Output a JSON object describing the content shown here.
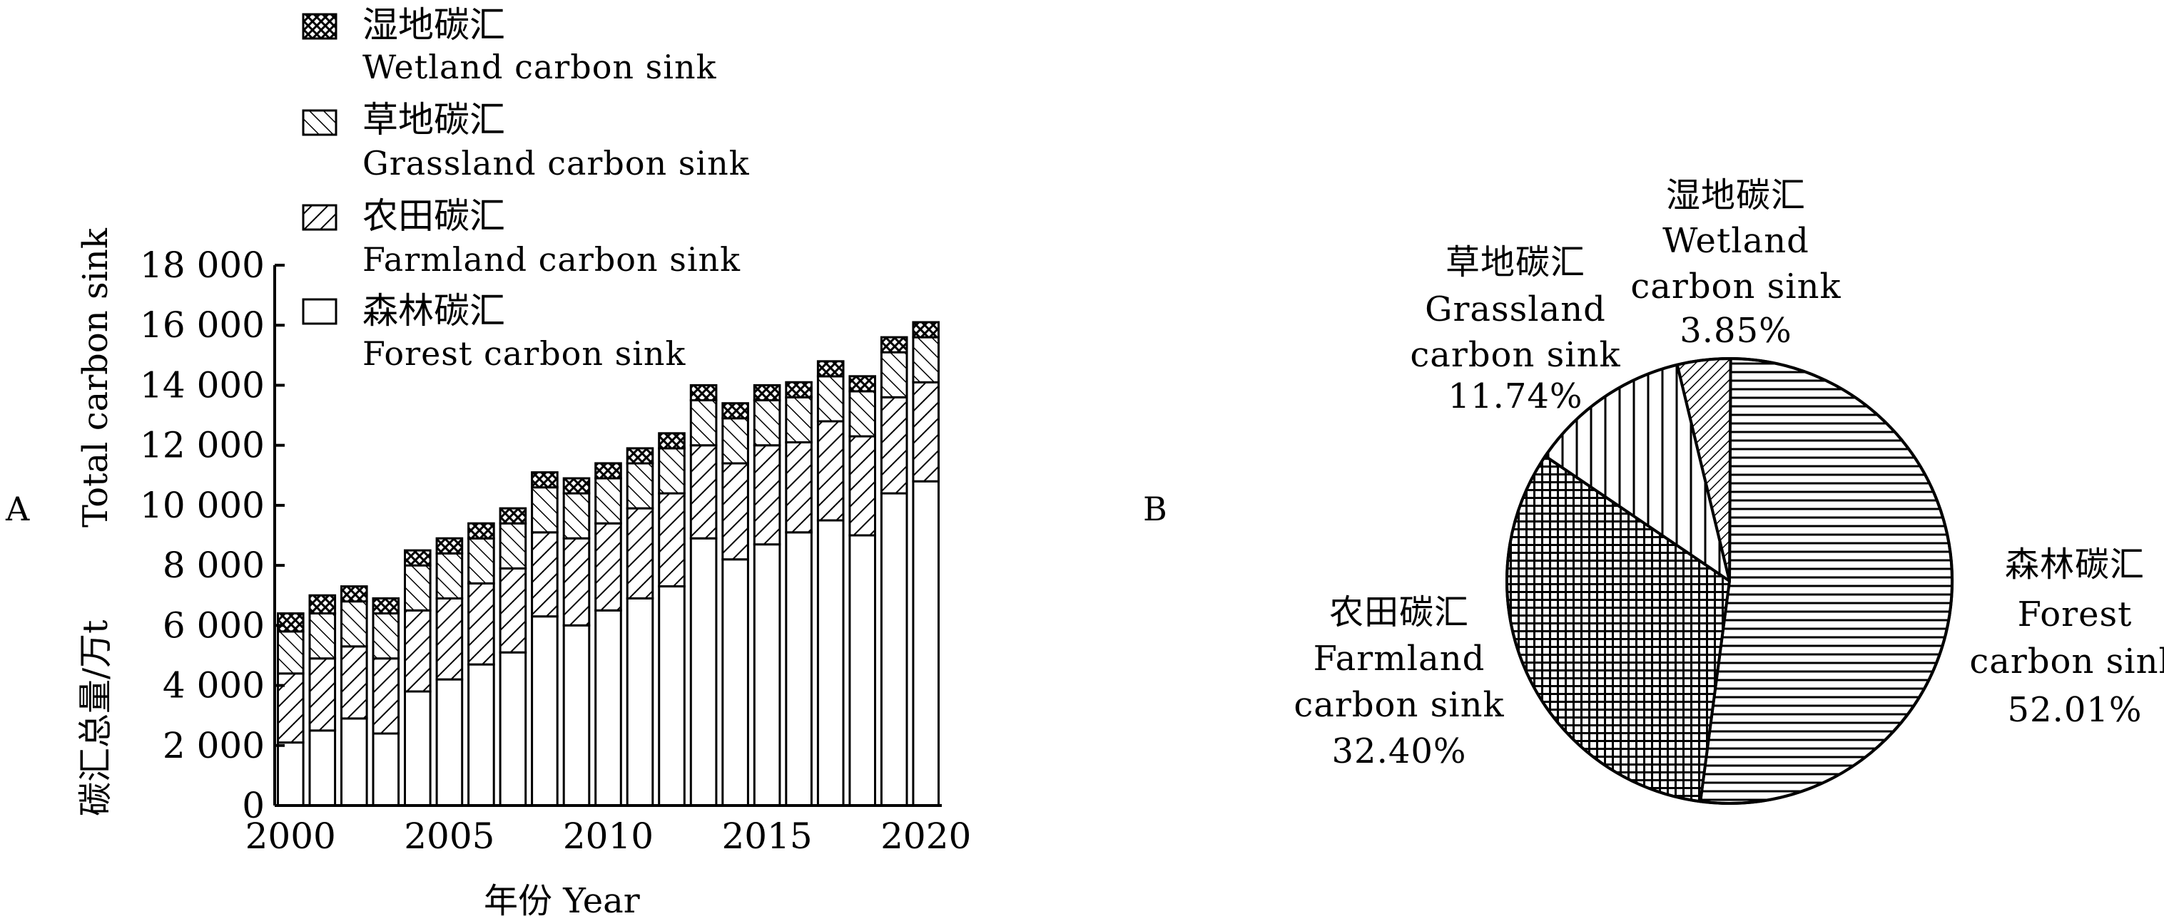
{
  "panel_a": {
    "label": "A",
    "ylabel_cn": "碳汇总量/万t",
    "ylabel_en": "Total carbon sink",
    "xlabel": "年份 Year",
    "legend": [
      {
        "cn": "湿地碳汇",
        "en": "Wetland carbon sink",
        "pattern": "wetland"
      },
      {
        "cn": "草地碳汇",
        "en": "Grassland carbon sink",
        "pattern": "grassland"
      },
      {
        "cn": "农田碳汇",
        "en": "Farmland carbon sink",
        "pattern": "farmland"
      },
      {
        "cn": "森林碳汇",
        "en": "Forest carbon sink",
        "pattern": "forest"
      }
    ]
  },
  "panel_b": {
    "label": "B",
    "slice_labels": [
      {
        "lines": [
          "森林碳汇",
          "Forest",
          "carbon sink",
          "52.01%"
        ]
      },
      {
        "lines": [
          "农田碳汇",
          "Farmland",
          "carbon sink",
          "32.40%"
        ]
      },
      {
        "lines": [
          "草地碳汇",
          "Grassland",
          "carbon sink",
          "11.74%"
        ]
      },
      {
        "lines": [
          "湿地碳汇",
          "Wetland",
          "carbon sink",
          "3.85%"
        ]
      }
    ]
  },
  "chart_data": [
    {
      "type": "bar",
      "stacked": true,
      "x": [
        2000,
        2001,
        2002,
        2003,
        2004,
        2005,
        2006,
        2007,
        2008,
        2009,
        2010,
        2011,
        2012,
        2013,
        2014,
        2015,
        2016,
        2017,
        2018,
        2019,
        2020
      ],
      "xticks": [
        "2000",
        "2005",
        "2010",
        "2015",
        "2020"
      ],
      "yticks": [
        "0",
        "2 000",
        "4 000",
        "6 000",
        "8 000",
        "10 000",
        "12 000",
        "14 000",
        "16 000",
        "18 000"
      ],
      "ylim": [
        0,
        18000
      ],
      "xlabel": "年份 Year",
      "ylabel": "碳汇总量/万t Total carbon sink",
      "legend_position": "top-left",
      "series": [
        {
          "name": "森林碳汇 Forest carbon sink",
          "pattern": "forest",
          "values": [
            2100,
            2500,
            2900,
            2400,
            3800,
            4200,
            4700,
            5100,
            6300,
            6000,
            6500,
            6900,
            7300,
            8900,
            8200,
            8700,
            9100,
            9500,
            9000,
            10400,
            10800
          ]
        },
        {
          "name": "农田碳汇 Farmland carbon sink",
          "pattern": "farmland",
          "values": [
            2300,
            2400,
            2400,
            2500,
            2700,
            2700,
            2700,
            2800,
            2800,
            2900,
            2900,
            3000,
            3100,
            3100,
            3200,
            3300,
            3000,
            3300,
            3300,
            3200,
            3300
          ]
        },
        {
          "name": "草地碳汇 Grassland carbon sink",
          "pattern": "grassland",
          "values": [
            1400,
            1500,
            1500,
            1500,
            1500,
            1500,
            1500,
            1500,
            1500,
            1500,
            1500,
            1500,
            1500,
            1500,
            1500,
            1500,
            1500,
            1500,
            1500,
            1500,
            1500
          ]
        },
        {
          "name": "湿地碳汇 Wetland carbon sink",
          "pattern": "wetland",
          "values": [
            600,
            600,
            500,
            500,
            500,
            500,
            500,
            500,
            500,
            500,
            500,
            500,
            500,
            500,
            500,
            500,
            500,
            500,
            500,
            500,
            500
          ]
        }
      ]
    },
    {
      "type": "pie",
      "slices": [
        {
          "name": "森林碳汇 Forest carbon sink",
          "value": 52.01,
          "pattern": "forest"
        },
        {
          "name": "农田碳汇 Farmland carbon sink",
          "value": 32.4,
          "pattern": "farmland"
        },
        {
          "name": "草地碳汇 Grassland carbon sink",
          "value": 11.74,
          "pattern": "grassland"
        },
        {
          "name": "湿地碳汇 Wetland carbon sink",
          "value": 3.85,
          "pattern": "wetland"
        }
      ]
    }
  ]
}
